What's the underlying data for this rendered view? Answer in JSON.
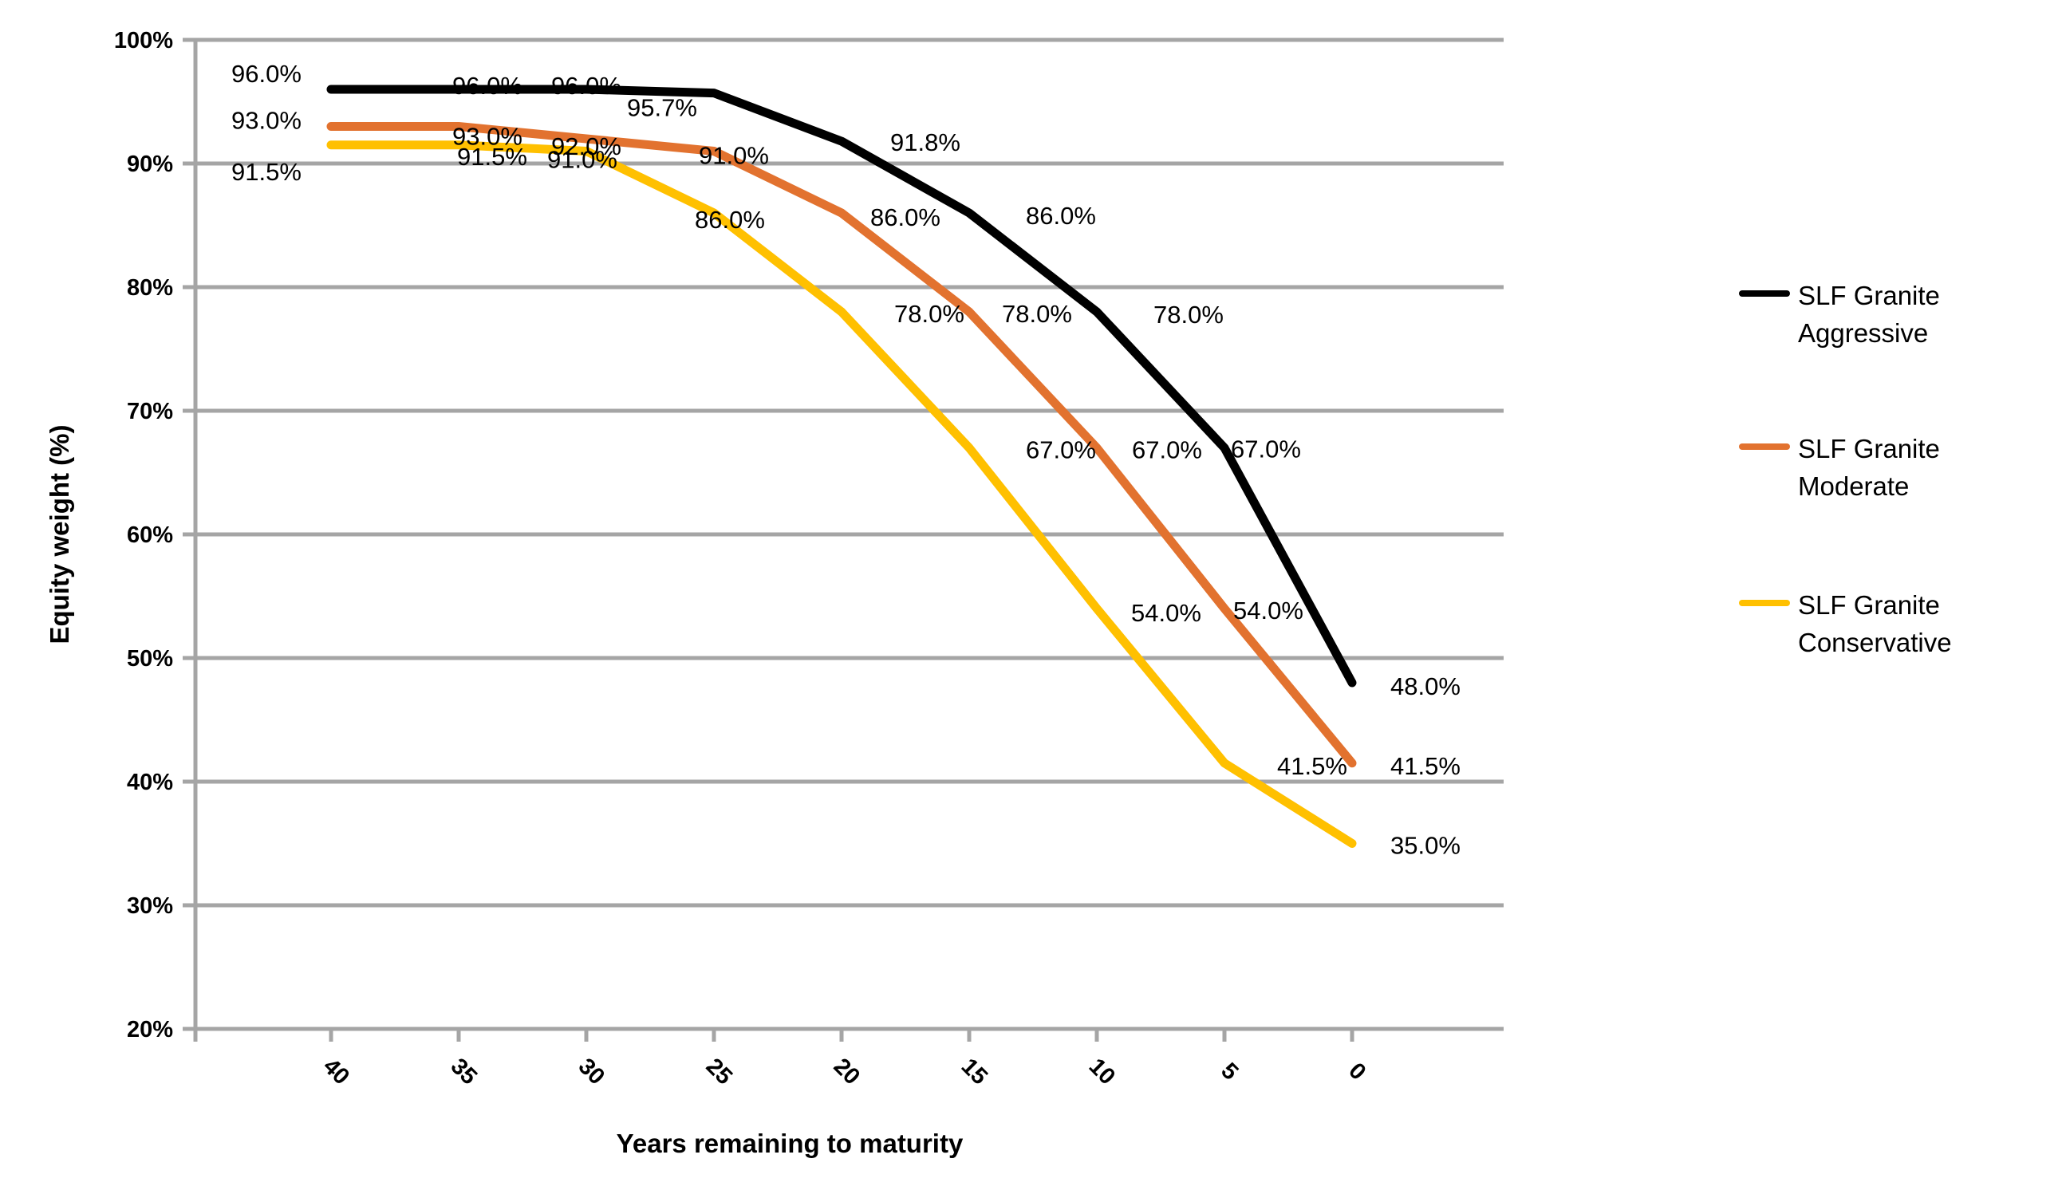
{
  "chart_data": {
    "type": "line",
    "xlabel": "Years remaining to maturity",
    "ylabel": "Equity weight (%)",
    "x_categories": [
      40,
      35,
      30,
      25,
      20,
      15,
      10,
      5,
      0
    ],
    "x_tick_labels": [
      "40",
      "35",
      "30",
      "25",
      "20",
      "15",
      "10",
      "5",
      "0"
    ],
    "y_tick_labels": [
      "100%",
      "90%",
      "80%",
      "70%",
      "60%",
      "50%",
      "40%",
      "30%",
      "20%"
    ],
    "y_tick_values": [
      100,
      90,
      80,
      70,
      60,
      50,
      40,
      30,
      20
    ],
    "ylim": [
      20,
      100
    ],
    "grid": "horizontal",
    "legend_position": "right",
    "gridline_color": "#A5A5A5",
    "axis_color": "#A5A5A5",
    "series": [
      {
        "name": "SLF Granite Aggressive",
        "color": "#000000",
        "values": [
          96.0,
          96.0,
          96.0,
          95.7,
          91.8,
          86.0,
          78.0,
          67.0,
          48.0
        ],
        "point_labels": [
          "96.0%",
          "96.0%",
          "96.0%",
          "95.7%",
          "91.8%",
          "86.0%",
          "78.0%",
          "67.0%",
          "48.0%"
        ]
      },
      {
        "name": "SLF Granite Moderate",
        "color": "#E2722F",
        "values": [
          93.0,
          93.0,
          92.0,
          91.0,
          86.0,
          78.0,
          67.0,
          54.0,
          41.5
        ],
        "point_labels": [
          "93.0%",
          "93.0%",
          "92.0%",
          "91.0%",
          "86.0%",
          "78.0%",
          "67.0%",
          "54.0%",
          "41.5%"
        ]
      },
      {
        "name": "SLF Granite Conservative",
        "color": "#FFC000",
        "values": [
          91.5,
          91.5,
          91.0,
          86.0,
          78.0,
          67.0,
          54.0,
          41.5,
          35.0
        ],
        "point_labels": [
          "91.5%",
          "91.5%",
          "91.0%",
          "86.0%",
          "78.0%",
          "67.0%",
          "54.0%",
          "41.5%",
          "35.0%"
        ]
      }
    ]
  }
}
